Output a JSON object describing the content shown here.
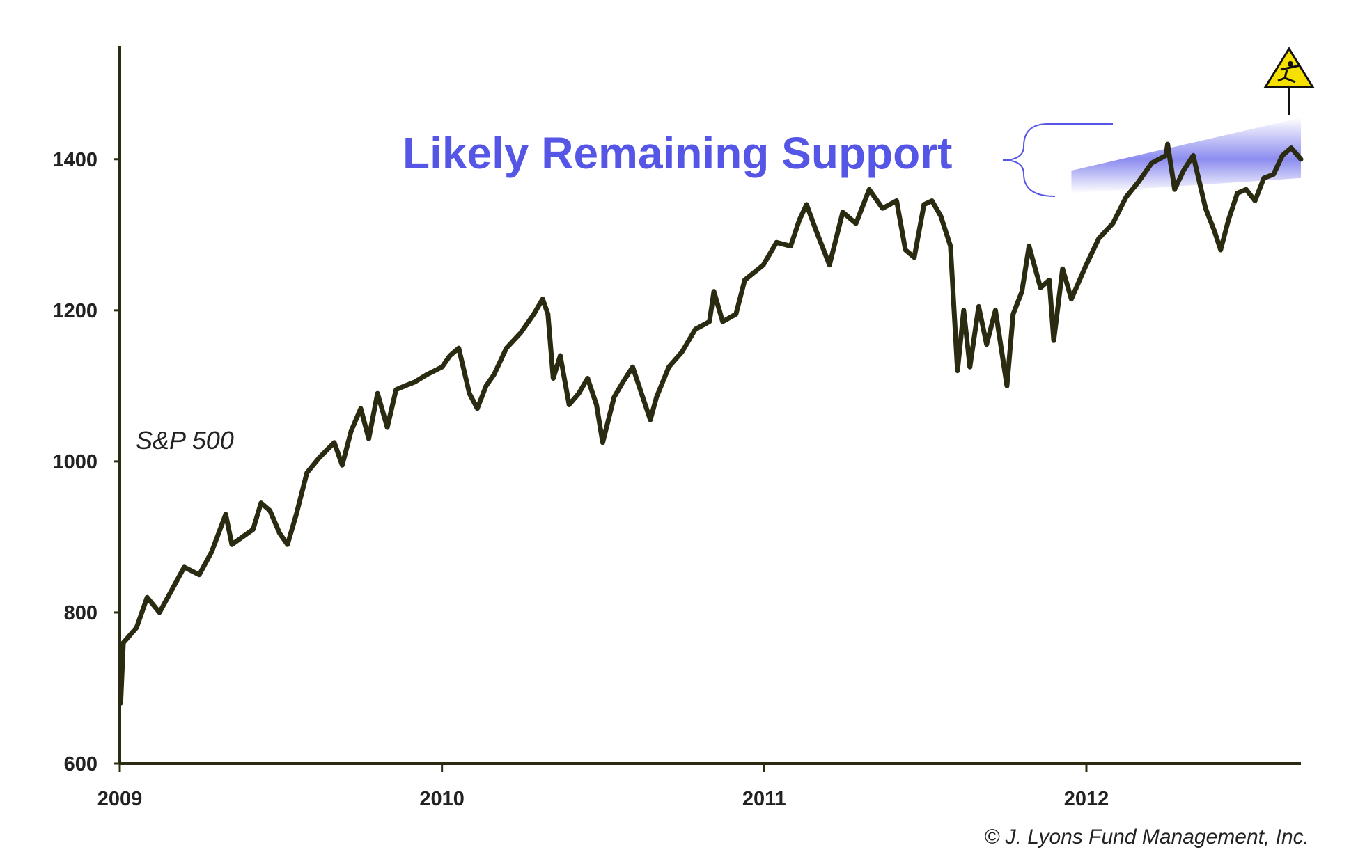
{
  "chart_data": {
    "type": "line",
    "title": "",
    "xlabel": "",
    "ylabel": "",
    "xlim": [
      "2009-01-01",
      "2012-08-31"
    ],
    "ylim": [
      600,
      1550
    ],
    "y_ticks": [
      600,
      800,
      1000,
      1200,
      1400
    ],
    "x_ticks": [
      {
        "label": "2009",
        "date": "2009-01-01"
      },
      {
        "label": "2010",
        "date": "2010-01-01"
      },
      {
        "label": "2011",
        "date": "2011-01-01"
      },
      {
        "label": "2012",
        "date": "2012-01-01"
      }
    ],
    "grid": false,
    "series": [
      {
        "name": "S&P 500",
        "color": "#2b2b12",
        "points": [
          [
            "2009-01-02",
            680
          ],
          [
            "2009-01-05",
            760
          ],
          [
            "2009-01-20",
            780
          ],
          [
            "2009-02-01",
            820
          ],
          [
            "2009-02-15",
            800
          ],
          [
            "2009-03-01",
            830
          ],
          [
            "2009-03-15",
            860
          ],
          [
            "2009-04-01",
            850
          ],
          [
            "2009-04-15",
            880
          ],
          [
            "2009-05-01",
            930
          ],
          [
            "2009-05-08",
            890
          ],
          [
            "2009-05-20",
            900
          ],
          [
            "2009-06-01",
            910
          ],
          [
            "2009-06-10",
            945
          ],
          [
            "2009-06-20",
            935
          ],
          [
            "2009-07-01",
            905
          ],
          [
            "2009-07-10",
            890
          ],
          [
            "2009-07-20",
            930
          ],
          [
            "2009-08-01",
            985
          ],
          [
            "2009-08-15",
            1005
          ],
          [
            "2009-09-01",
            1025
          ],
          [
            "2009-09-10",
            995
          ],
          [
            "2009-09-20",
            1040
          ],
          [
            "2009-10-01",
            1070
          ],
          [
            "2009-10-10",
            1030
          ],
          [
            "2009-10-20",
            1090
          ],
          [
            "2009-10-31",
            1045
          ],
          [
            "2009-11-10",
            1095
          ],
          [
            "2009-11-20",
            1100
          ],
          [
            "2009-12-01",
            1105
          ],
          [
            "2009-12-15",
            1115
          ],
          [
            "2010-01-01",
            1125
          ],
          [
            "2010-01-10",
            1140
          ],
          [
            "2010-01-20",
            1150
          ],
          [
            "2010-02-01",
            1090
          ],
          [
            "2010-02-10",
            1070
          ],
          [
            "2010-02-20",
            1100
          ],
          [
            "2010-03-01",
            1115
          ],
          [
            "2010-03-15",
            1150
          ],
          [
            "2010-03-31",
            1170
          ],
          [
            "2010-04-15",
            1195
          ],
          [
            "2010-04-25",
            1215
          ],
          [
            "2010-05-01",
            1195
          ],
          [
            "2010-05-07",
            1110
          ],
          [
            "2010-05-15",
            1140
          ],
          [
            "2010-05-25",
            1075
          ],
          [
            "2010-06-05",
            1090
          ],
          [
            "2010-06-15",
            1110
          ],
          [
            "2010-06-25",
            1075
          ],
          [
            "2010-07-02",
            1025
          ],
          [
            "2010-07-15",
            1085
          ],
          [
            "2010-07-25",
            1105
          ],
          [
            "2010-08-05",
            1125
          ],
          [
            "2010-08-15",
            1090
          ],
          [
            "2010-08-25",
            1055
          ],
          [
            "2010-09-01",
            1085
          ],
          [
            "2010-09-15",
            1125
          ],
          [
            "2010-09-30",
            1145
          ],
          [
            "2010-10-15",
            1175
          ],
          [
            "2010-10-31",
            1185
          ],
          [
            "2010-11-05",
            1225
          ],
          [
            "2010-11-15",
            1185
          ],
          [
            "2010-11-30",
            1195
          ],
          [
            "2010-12-10",
            1240
          ],
          [
            "2010-12-31",
            1260
          ],
          [
            "2011-01-15",
            1290
          ],
          [
            "2011-01-31",
            1285
          ],
          [
            "2011-02-10",
            1320
          ],
          [
            "2011-02-18",
            1340
          ],
          [
            "2011-03-01",
            1305
          ],
          [
            "2011-03-16",
            1260
          ],
          [
            "2011-03-31",
            1330
          ],
          [
            "2011-04-15",
            1315
          ],
          [
            "2011-04-30",
            1360
          ],
          [
            "2011-05-15",
            1335
          ],
          [
            "2011-05-31",
            1345
          ],
          [
            "2011-06-10",
            1280
          ],
          [
            "2011-06-20",
            1270
          ],
          [
            "2011-07-01",
            1340
          ],
          [
            "2011-07-10",
            1345
          ],
          [
            "2011-07-20",
            1325
          ],
          [
            "2011-07-31",
            1285
          ],
          [
            "2011-08-08",
            1120
          ],
          [
            "2011-08-15",
            1200
          ],
          [
            "2011-08-22",
            1125
          ],
          [
            "2011-09-01",
            1205
          ],
          [
            "2011-09-10",
            1155
          ],
          [
            "2011-09-20",
            1200
          ],
          [
            "2011-10-03",
            1100
          ],
          [
            "2011-10-10",
            1195
          ],
          [
            "2011-10-20",
            1225
          ],
          [
            "2011-10-28",
            1285
          ],
          [
            "2011-11-10",
            1230
          ],
          [
            "2011-11-20",
            1240
          ],
          [
            "2011-11-25",
            1160
          ],
          [
            "2011-12-05",
            1255
          ],
          [
            "2011-12-15",
            1215
          ],
          [
            "2011-12-31",
            1258
          ],
          [
            "2012-01-15",
            1295
          ],
          [
            "2012-01-31",
            1315
          ],
          [
            "2012-02-15",
            1350
          ],
          [
            "2012-02-29",
            1370
          ],
          [
            "2012-03-15",
            1395
          ],
          [
            "2012-03-31",
            1405
          ],
          [
            "2012-04-02",
            1420
          ],
          [
            "2012-04-10",
            1360
          ],
          [
            "2012-04-20",
            1385
          ],
          [
            "2012-05-01",
            1405
          ],
          [
            "2012-05-15",
            1335
          ],
          [
            "2012-05-25",
            1305
          ],
          [
            "2012-06-01",
            1280
          ],
          [
            "2012-06-10",
            1320
          ],
          [
            "2012-06-20",
            1355
          ],
          [
            "2012-06-30",
            1360
          ],
          [
            "2012-07-10",
            1345
          ],
          [
            "2012-07-20",
            1375
          ],
          [
            "2012-07-31",
            1380
          ],
          [
            "2012-08-10",
            1405
          ],
          [
            "2012-08-20",
            1415
          ],
          [
            "2012-08-31",
            1400
          ]
        ]
      }
    ],
    "annotations": {
      "support_label": "Likely Remaining Support",
      "support_color": "#5656e6",
      "warning_icon": "falling-person-warning-icon",
      "warning_color": "#f5e000"
    }
  },
  "labels": {
    "series_label": "S&P 500",
    "copyright": "© J. Lyons Fund Management, Inc."
  }
}
